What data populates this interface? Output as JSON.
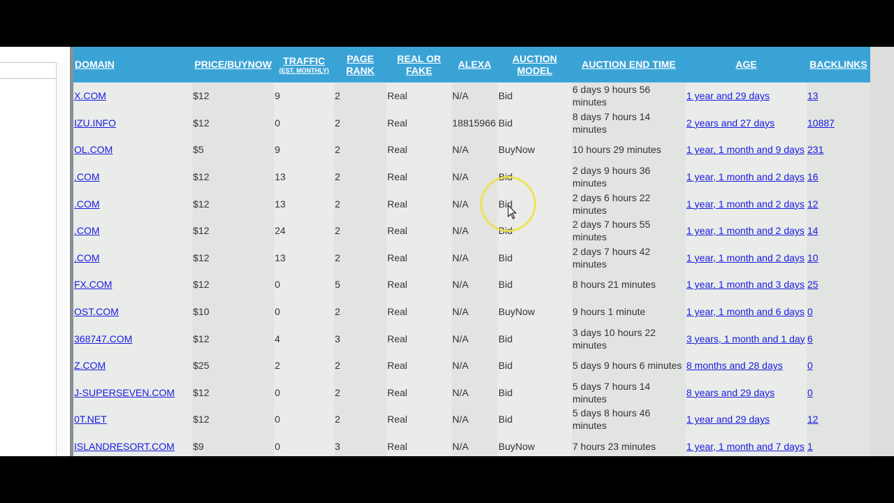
{
  "table": {
    "headers": [
      {
        "label": "DOMAIN"
      },
      {
        "label": "PRICE/BUYNOW"
      },
      {
        "label": "TRAFFIC",
        "sublabel": "(EST. MONTHLY)"
      },
      {
        "label": "PAGE RANK"
      },
      {
        "label": "REAL OR FAKE"
      },
      {
        "label": "ALEXA"
      },
      {
        "label": "AUCTION MODEL"
      },
      {
        "label": "AUCTION END TIME"
      },
      {
        "label": "AGE"
      },
      {
        "label": "BACKLINKS"
      }
    ],
    "rows": [
      [
        "X.COM",
        "$12",
        "9",
        "2",
        "Real",
        "N/A",
        "Bid",
        "6 days 9 hours 56 minutes",
        "1 year and 29 days",
        "13"
      ],
      [
        "IZU.INFO",
        "$12",
        "0",
        "2",
        "Real",
        "18815966",
        "Bid",
        "8 days 7 hours 14 minutes",
        "2 years and 27 days",
        "10887"
      ],
      [
        "OL.COM",
        "$5",
        "9",
        "2",
        "Real",
        "N/A",
        "BuyNow",
        "10 hours 29 minutes",
        "1 year, 1 month and 9 days",
        "231"
      ],
      [
        ".COM",
        "$12",
        "13",
        "2",
        "Real",
        "N/A",
        "Bid",
        "2 days 9 hours 36 minutes",
        "1 year, 1 month and 2 days",
        "16"
      ],
      [
        ".COM",
        "$12",
        "13",
        "2",
        "Real",
        "N/A",
        "Bid",
        "2 days 6 hours 22 minutes",
        "1 year, 1 month and 2 days",
        "12"
      ],
      [
        ".COM",
        "$12",
        "24",
        "2",
        "Real",
        "N/A",
        "Bid",
        "2 days 7 hours 55 minutes",
        "1 year, 1 month and 2 days",
        "14"
      ],
      [
        ".COM",
        "$12",
        "13",
        "2",
        "Real",
        "N/A",
        "Bid",
        "2 days 7 hours 42 minutes",
        "1 year, 1 month and 2 days",
        "10"
      ],
      [
        "FX.COM",
        "$12",
        "0",
        "5",
        "Real",
        "N/A",
        "Bid",
        "8 hours 21 minutes",
        "1 year, 1 month and 3 days",
        "25"
      ],
      [
        "OST.COM",
        "$10",
        "0",
        "2",
        "Real",
        "N/A",
        "BuyNow",
        "9 hours 1 minute",
        "1 year, 1 month and 6 days",
        "0"
      ],
      [
        "368747.COM",
        "$12",
        "4",
        "3",
        "Real",
        "N/A",
        "Bid",
        "3 days 10 hours 22 minutes",
        "3 years, 1 month and 1 day",
        "6"
      ],
      [
        "Z.COM",
        "$25",
        "2",
        "2",
        "Real",
        "N/A",
        "Bid",
        "5 days 9 hours 6 minutes",
        "8 months and 28 days",
        "0"
      ],
      [
        "J-SUPERSEVEN.COM",
        "$12",
        "0",
        "2",
        "Real",
        "N/A",
        "Bid",
        "5 days 7 hours 14 minutes",
        "8 years and 29 days",
        "0"
      ],
      [
        "0T.NET",
        "$12",
        "0",
        "2",
        "Real",
        "N/A",
        "Bid",
        "5 days 8 hours 46 minutes",
        "1 year and 29 days",
        "12"
      ],
      [
        "ISLANDRESORT.COM",
        "$9",
        "0",
        "3",
        "Real",
        "N/A",
        "BuyNow",
        "7 hours 23 minutes",
        "1 year, 1 month and 7 days",
        "1"
      ]
    ]
  }
}
